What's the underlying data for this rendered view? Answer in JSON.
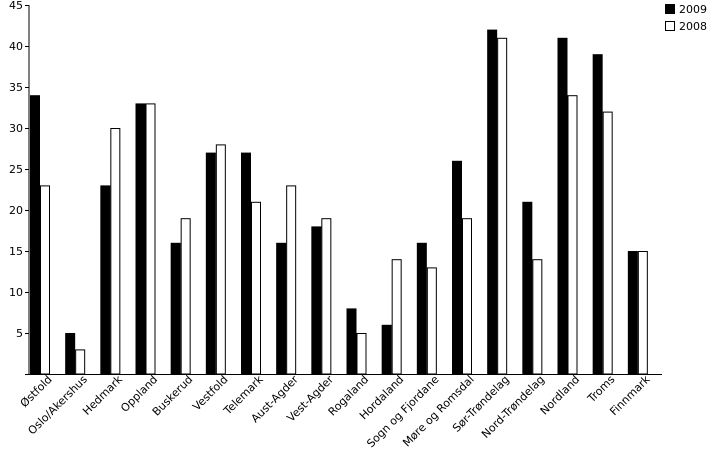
{
  "chart_data": {
    "type": "bar",
    "title": "",
    "xlabel": "",
    "ylabel": "",
    "ylim": [
      0,
      45
    ],
    "yticks": [
      0,
      5,
      10,
      15,
      20,
      25,
      30,
      35,
      40,
      45
    ],
    "yticks_shown": [
      "5",
      "10",
      "15",
      "20",
      "25",
      "30",
      "35",
      "40",
      "45"
    ],
    "grid": false,
    "legend_position": "top-right",
    "categories": [
      "Østfold",
      "Oslo/Akershus",
      "Hedmark",
      "Oppland",
      "Buskerud",
      "Vestfold",
      "Telemark",
      "Aust-Agder",
      "Vest-Agder",
      "Rogaland",
      "Hordaland",
      "Sogn og Fjordane",
      "Møre og Romsdal",
      "Sør-Trøndelag",
      "Nord-Trøndelag",
      "Nordland",
      "Troms",
      "Finnmark"
    ],
    "series": [
      {
        "name": "2009",
        "color": "#000000",
        "values": [
          34,
          5,
          23,
          33,
          16,
          27,
          27,
          16,
          18,
          8,
          6,
          16,
          26,
          42,
          21,
          41,
          39,
          15
        ]
      },
      {
        "name": "2008",
        "color": "#ffffff",
        "values": [
          23,
          3,
          30,
          33,
          19,
          28,
          21,
          23,
          19,
          5,
          14,
          13,
          19,
          41,
          14,
          34,
          32,
          15
        ]
      }
    ]
  }
}
